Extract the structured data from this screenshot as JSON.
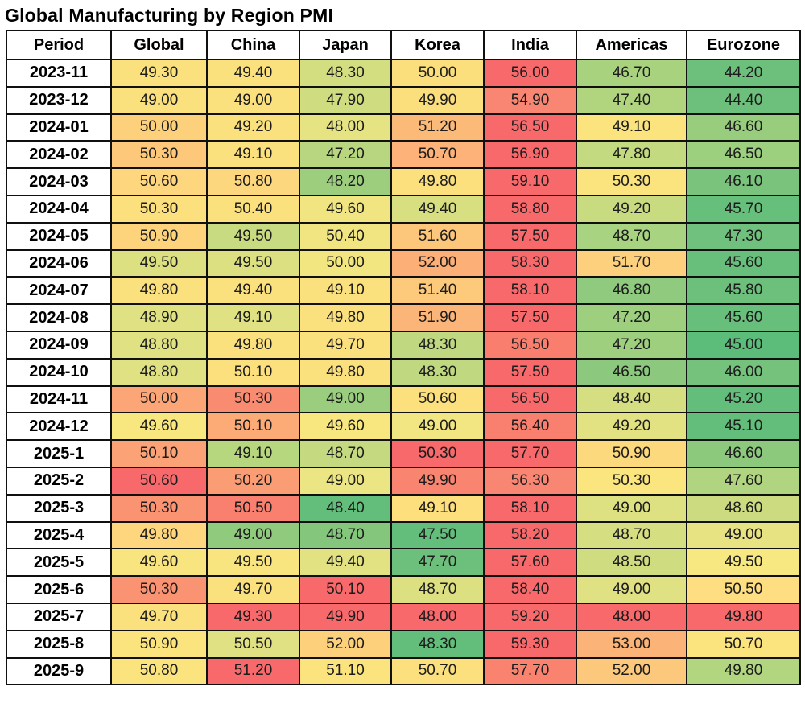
{
  "title": "Global Manufacturing by Region PMI",
  "table": {
    "columns": [
      "Period",
      "Global",
      "China",
      "Japan",
      "Korea",
      "India",
      "Americas",
      "Eurozone"
    ]
  },
  "chart_data": {
    "type": "heatmap",
    "title": "Global Manufacturing by Region PMI",
    "row_labels": [
      "2023-11",
      "2023-12",
      "2024-01",
      "2024-02",
      "2024-03",
      "2024-04",
      "2024-05",
      "2024-06",
      "2024-07",
      "2024-08",
      "2024-09",
      "2024-10",
      "2024-11",
      "2024-12",
      "2025-1",
      "2025-2",
      "2025-3",
      "2025-4",
      "2025-5",
      "2025-6",
      "2025-7",
      "2025-8",
      "2025-9"
    ],
    "col_labels": [
      "Global",
      "China",
      "Japan",
      "Korea",
      "India",
      "Americas",
      "Eurozone"
    ],
    "values": [
      [
        49.3,
        49.4,
        48.3,
        50.0,
        56.0,
        46.7,
        44.2
      ],
      [
        49.0,
        49.0,
        47.9,
        49.9,
        54.9,
        47.4,
        44.4
      ],
      [
        50.0,
        49.2,
        48.0,
        51.2,
        56.5,
        49.1,
        46.6
      ],
      [
        50.3,
        49.1,
        47.2,
        50.7,
        56.9,
        47.8,
        46.5
      ],
      [
        50.6,
        50.8,
        48.2,
        49.8,
        59.1,
        50.3,
        46.1
      ],
      [
        50.3,
        50.4,
        49.6,
        49.4,
        58.8,
        49.2,
        45.7
      ],
      [
        50.9,
        49.5,
        50.4,
        51.6,
        57.5,
        48.7,
        47.3
      ],
      [
        49.5,
        49.5,
        50.0,
        52.0,
        58.3,
        51.7,
        45.6
      ],
      [
        49.8,
        49.4,
        49.1,
        51.4,
        58.1,
        46.8,
        45.8
      ],
      [
        48.9,
        49.1,
        49.8,
        51.9,
        57.5,
        47.2,
        45.6
      ],
      [
        48.8,
        49.8,
        49.7,
        48.3,
        56.5,
        47.2,
        45.0
      ],
      [
        48.8,
        50.1,
        49.8,
        48.3,
        57.5,
        46.5,
        46.0
      ],
      [
        50.0,
        50.3,
        49.0,
        50.6,
        56.5,
        48.4,
        45.2
      ],
      [
        49.6,
        50.1,
        49.6,
        49.0,
        56.4,
        49.2,
        45.1
      ],
      [
        50.1,
        49.1,
        48.7,
        50.3,
        57.7,
        50.9,
        46.6
      ],
      [
        50.6,
        50.2,
        49.0,
        49.9,
        56.3,
        50.3,
        47.6
      ],
      [
        50.3,
        50.5,
        48.4,
        49.1,
        58.1,
        49.0,
        48.6
      ],
      [
        49.8,
        49.0,
        48.7,
        47.5,
        58.2,
        48.7,
        49.0
      ],
      [
        49.6,
        49.5,
        49.4,
        47.7,
        57.6,
        48.5,
        49.5
      ],
      [
        50.3,
        49.7,
        50.1,
        48.7,
        58.4,
        49.0,
        50.5
      ],
      [
        49.7,
        49.3,
        49.9,
        48.0,
        59.2,
        48.0,
        49.8
      ],
      [
        50.9,
        50.5,
        52.0,
        48.3,
        59.3,
        53.0,
        50.7
      ],
      [
        50.8,
        51.2,
        51.1,
        50.7,
        57.7,
        52.0,
        49.8
      ]
    ],
    "cell_colors": [
      [
        "#FBE17D",
        "#FBE17D",
        "#D3DE81",
        "#FCDF7D",
        "#F8696B",
        "#A9D27F",
        "#6CC07C"
      ],
      [
        "#FBE17D",
        "#FBE17D",
        "#CFDC80",
        "#FCDF7D",
        "#F98672",
        "#B1D47F",
        "#6CC07C"
      ],
      [
        "#FDD07B",
        "#FBE17D",
        "#E6E383",
        "#FCBA79",
        "#F8696B",
        "#FBE37E",
        "#98CD7E"
      ],
      [
        "#FDC87A",
        "#FBE17D",
        "#B7D67F",
        "#FCB278",
        "#F8696B",
        "#C4DA80",
        "#9CCF7E"
      ],
      [
        "#FDD67D",
        "#FDD77E",
        "#9CCE7E",
        "#FBE07D",
        "#F8696B",
        "#FBE37E",
        "#79C37C"
      ],
      [
        "#FBE07D",
        "#FBE17D",
        "#F0E581",
        "#D7DF81",
        "#F8696B",
        "#C9DB80",
        "#66BF7B"
      ],
      [
        "#FDD47B",
        "#C9DB81",
        "#F0E581",
        "#FDC77B",
        "#F8696B",
        "#A8D380",
        "#6FC17D"
      ],
      [
        "#DCE081",
        "#DCE081",
        "#F2E681",
        "#FCB078",
        "#F8696B",
        "#FCD07C",
        "#68BF7C"
      ],
      [
        "#FBE17D",
        "#FBE17D",
        "#FBE17D",
        "#FDC97B",
        "#F8696B",
        "#8FCA7E",
        "#6CC07C"
      ],
      [
        "#DFE182",
        "#DFE182",
        "#FBE17D",
        "#FCB579",
        "#F8696B",
        "#9DCF7F",
        "#68BF7C"
      ],
      [
        "#DFE182",
        "#FBE17D",
        "#FBE17D",
        "#C0D980",
        "#F97E6E",
        "#9DCF7F",
        "#5CBC7A"
      ],
      [
        "#DFE182",
        "#FBE07D",
        "#FBE17D",
        "#C0D980",
        "#F8696B",
        "#8CC87D",
        "#74C27C"
      ],
      [
        "#FCA678",
        "#F98B71",
        "#9BCD7E",
        "#FBE07D",
        "#F8696B",
        "#D5DE81",
        "#63BE7B"
      ],
      [
        "#F8E67F",
        "#FCAB77",
        "#F8E67F",
        "#F2E682",
        "#F9806F",
        "#E2E282",
        "#63BE7B"
      ],
      [
        "#FBA376",
        "#B7D77F",
        "#C5DA80",
        "#F8696B",
        "#F8696B",
        "#FDD97E",
        "#8CC97D"
      ],
      [
        "#F8696B",
        "#FB9D74",
        "#EBE583",
        "#F98571",
        "#F98673",
        "#FBE57F",
        "#B0D47F"
      ],
      [
        "#FA9372",
        "#F97F6F",
        "#63BE7B",
        "#FDE07D",
        "#F8696B",
        "#DEE182",
        "#CDDB80"
      ],
      [
        "#FDD67E",
        "#90CA7D",
        "#85C67D",
        "#63BE7B",
        "#F8696B",
        "#D5DE81",
        "#E7E382"
      ],
      [
        "#F8E57F",
        "#F8E57F",
        "#E3E282",
        "#6DC07B",
        "#F8696B",
        "#D0DC80",
        "#F7E881"
      ],
      [
        "#FA9372",
        "#FBE17D",
        "#F8696B",
        "#DCE081",
        "#F8696B",
        "#DFE182",
        "#FEDE80"
      ],
      [
        "#FBE17D",
        "#F8696B",
        "#F8696B",
        "#F8696B",
        "#F8696B",
        "#F8696B",
        "#F8696B"
      ],
      [
        "#FBE47E",
        "#E0E182",
        "#FDD17C",
        "#63BE7B",
        "#F8696B",
        "#FCB377",
        "#FBE37E"
      ],
      [
        "#FBE47E",
        "#F8696B",
        "#FBE47E",
        "#FBE07D",
        "#F9836F",
        "#FCC87B",
        "#B2D57F"
      ]
    ],
    "color_scale": {
      "low": "#63BE7B",
      "mid": "#FFEB84",
      "high": "#F8696B"
    },
    "value_format": "0.00",
    "xlabel": "",
    "ylabel": ""
  }
}
